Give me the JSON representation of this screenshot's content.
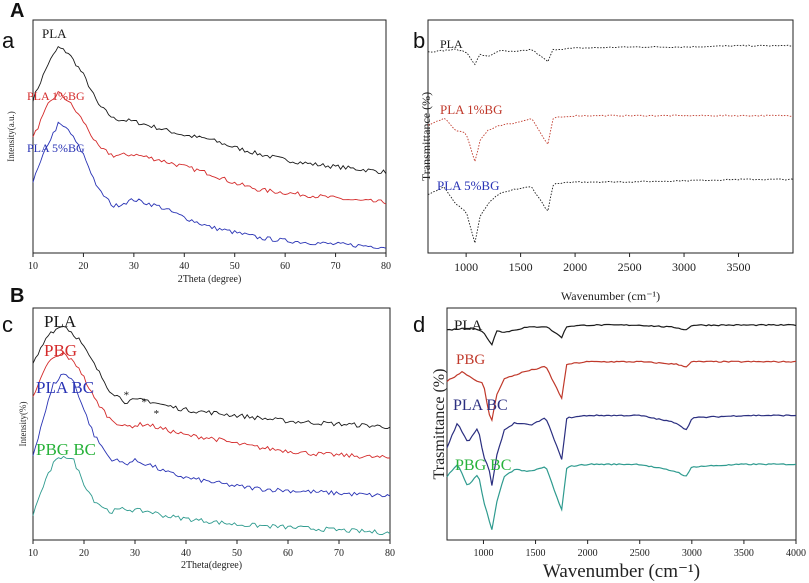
{
  "figure": {
    "section_a": "A",
    "section_b": "B",
    "panel_letters": [
      "a",
      "b",
      "c",
      "d"
    ]
  },
  "colors": {
    "black": "#1a1a1a",
    "red": "#d42b2b",
    "blue": "#2a34b5",
    "teal": "#2f9b8f",
    "green_label": "#27b23a",
    "red_dark": "#c0392b",
    "navy": "#2b2f80"
  },
  "chart_data": [
    {
      "id": "a",
      "type": "line",
      "title": "",
      "xlabel": "2Theta (degree)",
      "ylabel": "Intensity(a.u.)",
      "xlim": [
        10,
        80
      ],
      "xticks": [
        10,
        20,
        30,
        40,
        50,
        60,
        70,
        80
      ],
      "series": [
        {
          "name": "PLA",
          "color": "#1a1a1a",
          "x": [
            10,
            13,
            15,
            17,
            20,
            23,
            26,
            30,
            35,
            40,
            45,
            50,
            55,
            60,
            65,
            70,
            75,
            80
          ],
          "y": [
            5.6,
            6.9,
            7.5,
            7.3,
            6.5,
            5.4,
            4.9,
            4.8,
            4.55,
            4.3,
            4.15,
            3.85,
            3.6,
            3.4,
            3.25,
            3.15,
            3.05,
            2.95
          ]
        },
        {
          "name": "PLA 1%BG",
          "color": "#d42b2b",
          "x": [
            10,
            13,
            15,
            17,
            20,
            23,
            26,
            30,
            35,
            40,
            45,
            50,
            55,
            60,
            65,
            70,
            75,
            80
          ],
          "y": [
            4.2,
            5.4,
            5.85,
            5.55,
            4.8,
            3.85,
            3.55,
            3.6,
            3.4,
            3.15,
            2.9,
            2.55,
            2.3,
            2.2,
            2.1,
            2.0,
            1.9,
            1.85
          ]
        },
        {
          "name": "PLA 5%BG",
          "color": "#2a34b5",
          "x": [
            10,
            13,
            15,
            17,
            20,
            23,
            26,
            30,
            35,
            40,
            45,
            50,
            55,
            60,
            65,
            70,
            75,
            80
          ],
          "y": [
            2.6,
            4.0,
            4.7,
            4.5,
            3.6,
            2.3,
            1.7,
            1.95,
            1.7,
            1.3,
            0.95,
            0.75,
            0.55,
            0.45,
            0.38,
            0.32,
            0.27,
            0.22
          ]
        }
      ]
    },
    {
      "id": "b",
      "type": "line",
      "title": "",
      "xlabel": "Wavenumber (cm⁻¹)",
      "ylabel": "Transmittance   (%)",
      "xlim": [
        650,
        4000
      ],
      "xticks": [
        1000,
        1500,
        2000,
        2500,
        3000,
        3500
      ],
      "series": [
        {
          "name": "PLA",
          "color": "#1a1a1a",
          "x": [
            650,
            900,
            1000,
            1080,
            1130,
            1200,
            1300,
            1450,
            1600,
            1750,
            1800,
            2000,
            2500,
            3000,
            3500,
            4000
          ],
          "y": [
            8.2,
            8.3,
            8.2,
            7.7,
            8.1,
            8.0,
            8.25,
            8.2,
            8.3,
            7.8,
            8.3,
            8.35,
            8.4,
            8.4,
            8.45,
            8.45
          ]
        },
        {
          "name": "PLA 1%BG",
          "color": "#c0392b",
          "x": [
            650,
            800,
            900,
            1000,
            1080,
            1130,
            1200,
            1300,
            1450,
            1600,
            1750,
            1800,
            2000,
            2500,
            3000,
            3500,
            4000
          ],
          "y": [
            5.2,
            5.5,
            5.0,
            4.9,
            3.7,
            4.6,
            5.0,
            5.2,
            5.3,
            5.5,
            4.4,
            5.5,
            5.6,
            5.6,
            5.6,
            5.6,
            5.6
          ]
        },
        {
          "name": "PLA 5%BG",
          "color": "#1a1a1a",
          "x": [
            650,
            800,
            900,
            1000,
            1080,
            1130,
            1200,
            1300,
            1450,
            1600,
            1750,
            1800,
            2000,
            2500,
            3000,
            3500,
            4000
          ],
          "y": [
            2.4,
            2.7,
            2.0,
            1.7,
            0.4,
            1.5,
            2.0,
            2.4,
            2.6,
            2.7,
            1.7,
            2.8,
            2.9,
            2.9,
            2.95,
            3.0,
            3.0
          ]
        }
      ]
    },
    {
      "id": "c",
      "type": "line",
      "title": "",
      "xlabel": "2Theta(degree)",
      "ylabel": "Intensity(%)",
      "xlim": [
        10,
        80
      ],
      "xticks": [
        10,
        20,
        30,
        40,
        50,
        60,
        70,
        80
      ],
      "annotations": [
        "*",
        "*",
        "*"
      ],
      "series": [
        {
          "name": "PLA",
          "color": "#1a1a1a",
          "x": [
            10,
            13,
            16,
            19,
            22,
            25,
            28,
            32,
            36,
            40,
            45,
            50,
            55,
            60,
            65,
            70,
            75,
            80
          ],
          "y": [
            6.2,
            7.3,
            7.6,
            7.1,
            6.2,
            5.3,
            4.9,
            4.95,
            4.75,
            4.6,
            4.5,
            4.4,
            4.3,
            4.2,
            4.15,
            4.1,
            4.05,
            4.0
          ]
        },
        {
          "name": "PBG",
          "color": "#d42b2b",
          "x": [
            10,
            13,
            16,
            19,
            22,
            25,
            28,
            32,
            36,
            40,
            45,
            50,
            55,
            60,
            65,
            70,
            75,
            80
          ],
          "y": [
            5.0,
            6.3,
            6.6,
            6.1,
            5.0,
            4.3,
            4.0,
            4.1,
            3.9,
            3.7,
            3.6,
            3.4,
            3.25,
            3.15,
            3.05,
            3.0,
            2.95,
            2.9
          ]
        },
        {
          "name": "PLA BC",
          "color": "#2a34b5",
          "x": [
            10,
            12,
            14,
            16,
            18,
            20,
            22,
            25,
            28,
            30,
            33,
            36,
            40,
            45,
            50,
            55,
            60,
            65,
            70,
            75,
            80
          ],
          "y": [
            3.0,
            4.3,
            5.5,
            5.9,
            5.6,
            4.6,
            3.7,
            2.9,
            2.7,
            2.8,
            2.65,
            2.4,
            2.2,
            2.05,
            1.9,
            1.8,
            1.75,
            1.7,
            1.65,
            1.6,
            1.55
          ]
        },
        {
          "name": "PBG BC",
          "color": "#2f9b8f",
          "x": [
            10,
            12,
            14,
            16,
            18,
            20,
            22,
            25,
            28,
            30,
            33,
            36,
            40,
            45,
            50,
            55,
            60,
            65,
            70,
            75,
            80
          ],
          "y": [
            0.9,
            1.9,
            2.7,
            3.0,
            2.8,
            2.0,
            1.4,
            1.0,
            1.1,
            1.05,
            1.0,
            0.85,
            0.75,
            0.65,
            0.55,
            0.5,
            0.45,
            0.4,
            0.35,
            0.3,
            0.25
          ]
        }
      ]
    },
    {
      "id": "d",
      "type": "line",
      "title": "",
      "xlabel": "Wavenumber (cm⁻¹)",
      "ylabel": "Trasmittance (%)",
      "xlim": [
        650,
        4000
      ],
      "xticks": [
        1000,
        1500,
        2000,
        2500,
        3000,
        3500,
        4000
      ],
      "series": [
        {
          "name": "PLA",
          "color": "#1a1a1a",
          "x": [
            650,
            900,
            1000,
            1080,
            1130,
            1200,
            1400,
            1600,
            1750,
            1800,
            2000,
            2500,
            2850,
            2950,
            3000,
            3500,
            4000
          ],
          "y": [
            8.6,
            8.7,
            8.5,
            8.0,
            8.6,
            8.5,
            8.7,
            8.75,
            8.3,
            8.75,
            8.8,
            8.8,
            8.7,
            8.6,
            8.8,
            8.8,
            8.8
          ]
        },
        {
          "name": "PBG",
          "color": "#c0392b",
          "x": [
            650,
            800,
            900,
            1000,
            1050,
            1080,
            1130,
            1200,
            1400,
            1600,
            1750,
            1800,
            2000,
            2500,
            2850,
            2950,
            3000,
            3500,
            4000
          ],
          "y": [
            6.5,
            6.9,
            6.6,
            6.4,
            5.2,
            4.9,
            6.0,
            6.6,
            6.9,
            7.1,
            5.8,
            7.2,
            7.3,
            7.3,
            7.2,
            7.1,
            7.3,
            7.3,
            7.3
          ]
        },
        {
          "name": "PLA BC",
          "color": "#2b2f80",
          "x": [
            650,
            750,
            850,
            950,
            1000,
            1050,
            1080,
            1130,
            1200,
            1300,
            1450,
            1600,
            1750,
            1800,
            2000,
            2500,
            2850,
            2950,
            3000,
            3500,
            4000
          ],
          "y": [
            3.8,
            4.8,
            4.0,
            4.6,
            3.4,
            3.0,
            2.2,
            3.5,
            4.5,
            4.8,
            4.7,
            5.0,
            3.3,
            5.0,
            5.1,
            5.1,
            4.8,
            4.5,
            5.0,
            5.1,
            5.1
          ]
        },
        {
          "name": "PBG BC",
          "color": "#2f9b8f",
          "x": [
            650,
            750,
            850,
            950,
            1000,
            1050,
            1080,
            1130,
            1200,
            1300,
            1450,
            1600,
            1750,
            1800,
            2000,
            2500,
            2850,
            2950,
            3000,
            3500,
            4000
          ],
          "y": [
            2.6,
            3.1,
            2.2,
            2.7,
            1.6,
            0.9,
            0.4,
            1.6,
            2.6,
            2.9,
            2.8,
            3.0,
            1.2,
            3.0,
            3.1,
            3.1,
            2.8,
            2.6,
            3.0,
            3.1,
            3.1
          ]
        }
      ]
    }
  ]
}
